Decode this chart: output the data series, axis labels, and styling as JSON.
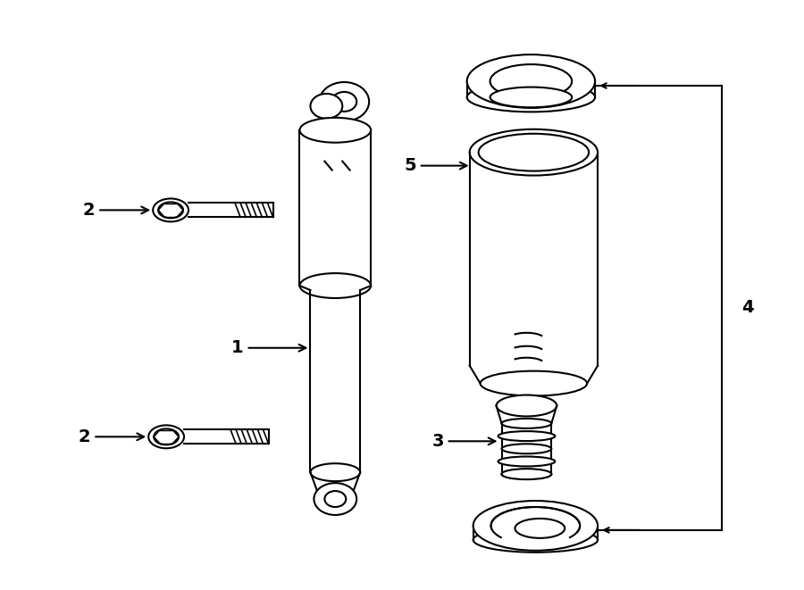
{
  "bg_color": "#ffffff",
  "line_color": "#000000",
  "line_width": 1.5,
  "fig_width": 9.0,
  "fig_height": 6.61,
  "dpi": 100
}
